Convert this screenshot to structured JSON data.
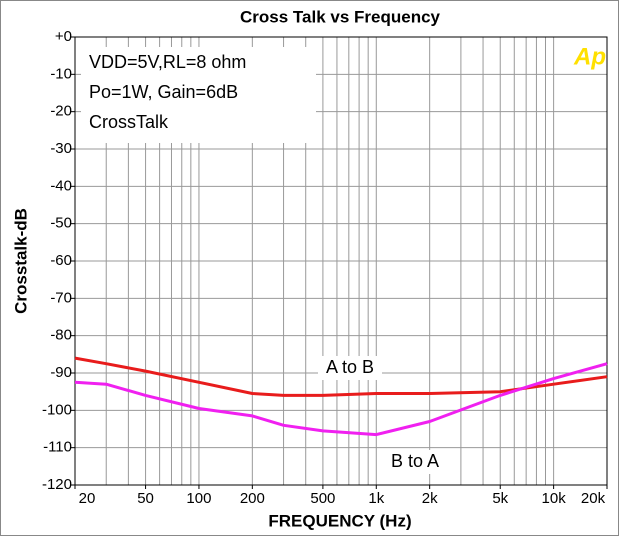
{
  "chart_data": {
    "type": "line",
    "title": "Cross Talk vs Frequency",
    "xlabel": "FREQUENCY (Hz)",
    "ylabel": "Crosstalk-dB",
    "annotations": [
      "VDD=5V,RL=8 ohm",
      "Po=1W, Gain=6dB",
      "CrossTalk",
      "Ap"
    ],
    "x": [
      20,
      30,
      50,
      100,
      200,
      300,
      500,
      1000,
      2000,
      5000,
      10000,
      20000
    ],
    "series": [
      {
        "name": "A to B",
        "color": "#e81c1c",
        "values": [
          -86,
          -87.5,
          -89.5,
          -92.5,
          -95.5,
          -96,
          -96,
          -95.5,
          -95.5,
          -95,
          -93,
          -91
        ]
      },
      {
        "name": "B to A",
        "color": "#f020f0",
        "values": [
          -92.5,
          -93,
          -96,
          -99.5,
          -101.5,
          -104,
          -105.5,
          -106.5,
          -103,
          -96,
          -91.5,
          -87.5
        ]
      }
    ],
    "xlim": [
      20,
      20000
    ],
    "log_x": true,
    "xticks": [
      20,
      50,
      100,
      200,
      500,
      {
        "value": 1000,
        "label": "1k"
      },
      {
        "value": 2000,
        "label": "2k"
      },
      {
        "value": 5000,
        "label": "5k"
      },
      {
        "value": 10000,
        "label": "10k"
      },
      {
        "value": 20000,
        "label": "20k"
      }
    ],
    "xminorticks": [
      30,
      40,
      60,
      70,
      80,
      90,
      300,
      400,
      600,
      700,
      800,
      900,
      3000,
      4000,
      6000,
      7000,
      8000,
      9000
    ],
    "ylim": [
      -120,
      0
    ],
    "yticks": [
      {
        "value": 0,
        "label": "+0"
      },
      -10,
      -20,
      -30,
      -40,
      -50,
      -60,
      -70,
      -80,
      -90,
      -100,
      -110,
      -120
    ],
    "grid": true
  }
}
